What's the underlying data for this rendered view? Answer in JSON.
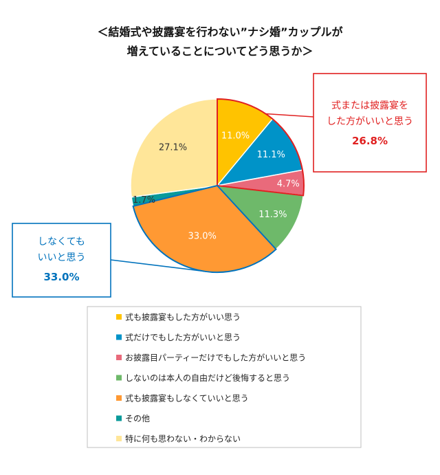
{
  "chart_data": {
    "type": "pie",
    "title_lines": [
      "＜結婚式や披露宴を行わない”ナシ婚”カップルが",
      "増えていることについてどう思うか＞"
    ],
    "slices": [
      {
        "label": "式も披露宴もした方がいい思う",
        "value": 11.0,
        "value_label": "11.0%",
        "color": "#FFC300"
      },
      {
        "label": "式だけでもした方がいいと思う",
        "value": 11.1,
        "value_label": "11.1%",
        "color": "#0093C8"
      },
      {
        "label": "お披露目パーティーだけでもした方がいいと思う",
        "value": 4.7,
        "value_label": "4.7%",
        "color": "#E96A7B"
      },
      {
        "label": "しないのは本人の自由だけど後悔すると思う",
        "value": 11.3,
        "value_label": "11.3%",
        "color": "#6EB96A"
      },
      {
        "label": "式も披露宴もしなくていいと思う",
        "value": 33.0,
        "value_label": "33.0%",
        "color": "#FF9933"
      },
      {
        "label": "その他",
        "value": 1.7,
        "value_label": "1.7%",
        "color": "#0A9A9A"
      },
      {
        "label": "特に何も思わない・わからない",
        "value": 27.1,
        "value_label": "27.1%",
        "color": "#FFE699"
      }
    ],
    "callouts": [
      {
        "lines": [
          "式または披露宴を",
          "した方がいいと思う"
        ],
        "value": "26.8%",
        "color": "#E02020"
      },
      {
        "lines": [
          "しなくても",
          "いいと思う"
        ],
        "value": "33.0%",
        "color": "#0072BC"
      }
    ],
    "legend_placement": "bottom"
  }
}
